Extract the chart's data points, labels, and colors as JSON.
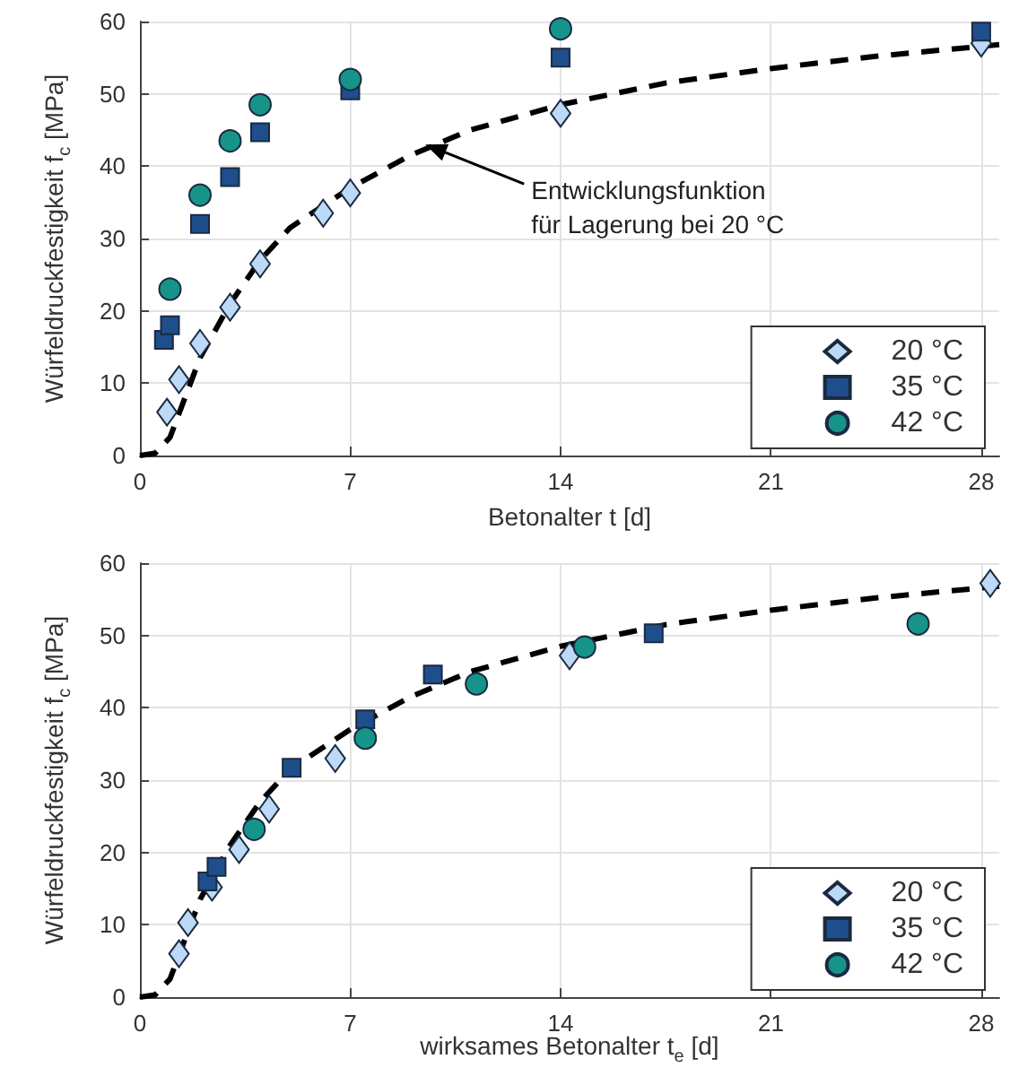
{
  "chart_data": [
    {
      "type": "scatter",
      "xlabel": "Betonalter t [d]",
      "ylabel": "Würfeldruckfestigkeit f$_{c}$ [MPa]",
      "xlim": [
        0,
        28.6
      ],
      "ylim": [
        0,
        60
      ],
      "xticks": [
        0,
        7,
        14,
        21,
        28
      ],
      "yticks": [
        0,
        10,
        20,
        30,
        40,
        50,
        60
      ],
      "grid": true,
      "legend": "bottom right",
      "annotations": [
        {
          "text": "Entwicklungsfunktion\nfür Lagerung bei 20 °C",
          "x": 9.5,
          "y": 43
        }
      ],
      "series": [
        {
          "type": "line",
          "color": "#000000",
          "marker": "none",
          "line_style": "dashed",
          "x": [
            0,
            0.5,
            1,
            1.5,
            2,
            3,
            4,
            5,
            7,
            9,
            11,
            14,
            17.5,
            21,
            24.5,
            28.6
          ],
          "values": [
            0,
            0.3,
            2.5,
            8,
            13.5,
            21,
            27,
            31.5,
            37,
            41.5,
            45,
            48.5,
            51.5,
            53.5,
            55.2,
            56.8
          ]
        },
        {
          "name": "20 °C",
          "color": "#bcd9f7",
          "marker": "diamond",
          "x": [
            0.9,
            1.3,
            2,
            3,
            4,
            6.1,
            7,
            14,
            28
          ],
          "values": [
            6,
            10.5,
            15.5,
            20.5,
            26.5,
            33.5,
            36.3,
            47.3,
            57
          ]
        },
        {
          "name": "35 °C",
          "color": "#1f4e8c",
          "marker": "square",
          "x": [
            0.8,
            1,
            2,
            3,
            4,
            7,
            14,
            28
          ],
          "values": [
            16,
            18,
            32,
            38.5,
            44.7,
            50.5,
            55,
            58.6
          ]
        },
        {
          "name": "42 °C",
          "color": "#16948a",
          "marker": "circle",
          "x": [
            1,
            2,
            3,
            4,
            7,
            14
          ],
          "values": [
            23,
            36,
            43.5,
            48.5,
            52,
            59
          ]
        }
      ]
    },
    {
      "type": "scatter",
      "xlabel": "wirksames Betonalter t$_{e}$ [d]",
      "ylabel": "Würfeldruckfestigkeit f$_{c}$ [MPa]",
      "xlim": [
        0,
        28.6
      ],
      "ylim": [
        0,
        60
      ],
      "xticks": [
        0,
        7,
        14,
        21,
        28
      ],
      "yticks": [
        0,
        10,
        20,
        30,
        40,
        50,
        60
      ],
      "grid": true,
      "legend": "bottom right",
      "series": [
        {
          "type": "line",
          "color": "#000000",
          "marker": "none",
          "line_style": "dashed",
          "x": [
            0,
            0.5,
            1,
            1.5,
            2,
            3,
            4,
            5,
            7,
            9,
            11,
            14,
            17.5,
            21,
            24.5,
            28.6
          ],
          "values": [
            0,
            0.3,
            2.5,
            8,
            13.5,
            21,
            27,
            31.5,
            37,
            41.5,
            45,
            48.5,
            51.5,
            53.5,
            55.2,
            56.8
          ]
        },
        {
          "name": "20 °C",
          "color": "#bcd9f7",
          "marker": "diamond",
          "x": [
            1.3,
            1.6,
            2.4,
            3.3,
            4.3,
            6.5,
            14.3,
            28.3
          ],
          "values": [
            6,
            10.3,
            15.2,
            20.4,
            26,
            33,
            47.2,
            57.2
          ]
        },
        {
          "name": "35 °C",
          "color": "#1f4e8c",
          "marker": "square",
          "x": [
            2.25,
            2.55,
            5.05,
            7.5,
            9.75,
            17.1
          ],
          "values": [
            16,
            18,
            31.7,
            38.4,
            44.6,
            50.3
          ]
        },
        {
          "name": "42 °C",
          "color": "#16948a",
          "marker": "circle",
          "x": [
            3.8,
            7.5,
            11.2,
            14.8,
            25.9
          ],
          "values": [
            23.2,
            35.8,
            43.3,
            48.4,
            51.6
          ]
        }
      ]
    }
  ]
}
